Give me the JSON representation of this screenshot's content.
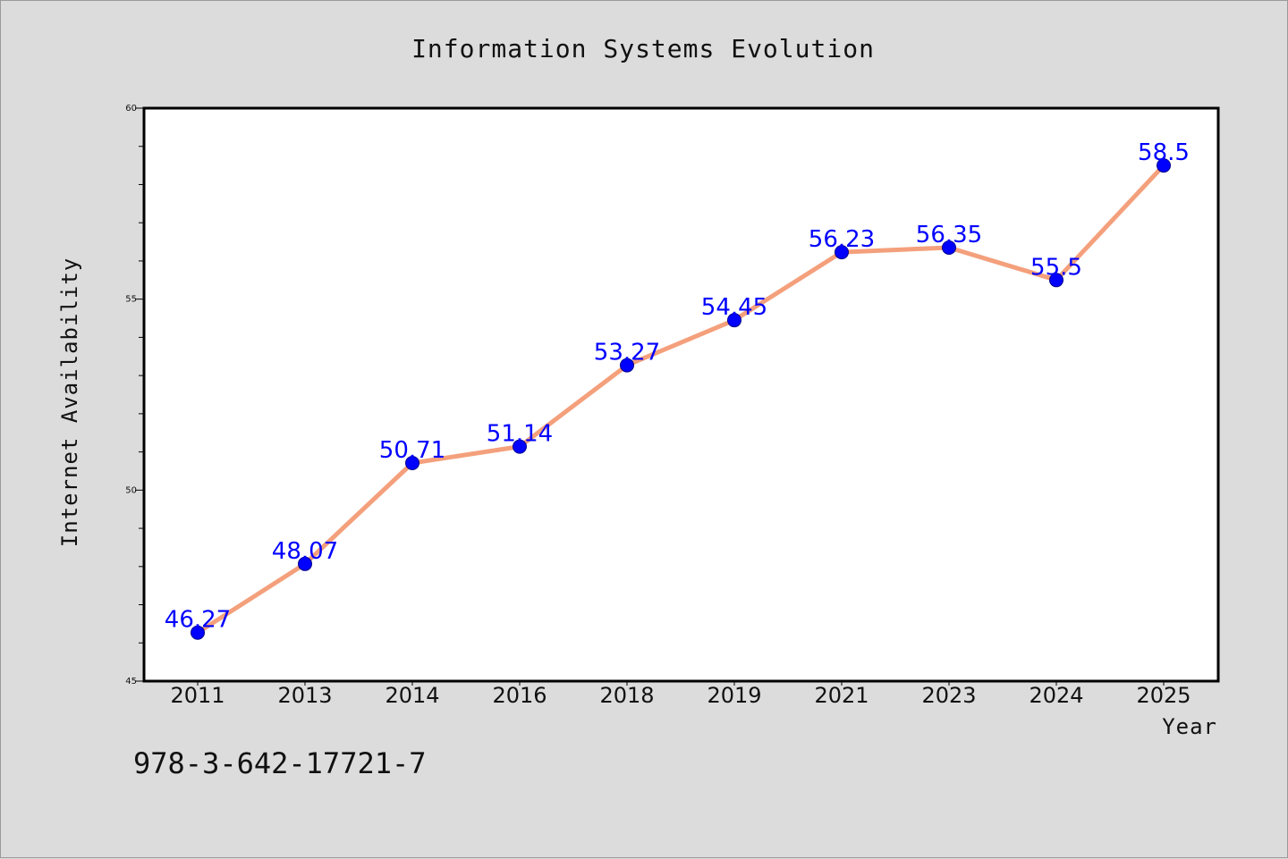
{
  "chart_data": {
    "type": "line",
    "title": "Information Systems Evolution",
    "xlabel": "Year",
    "ylabel": "Internet Availability",
    "categories": [
      "2011",
      "2013",
      "2014",
      "2016",
      "2018",
      "2019",
      "2021",
      "2023",
      "2024",
      "2025"
    ],
    "series": [
      {
        "values": [
          46.27,
          48.07,
          50.71,
          51.14,
          53.27,
          54.45,
          56.23,
          56.35,
          55.5,
          58.5
        ],
        "data_labels": [
          "46.27",
          "48.07",
          "50.71",
          "51.14",
          "53.27",
          "54.45",
          "56.23",
          "56.35",
          "55.5",
          "58.5"
        ],
        "line_color": "#f4a07c",
        "marker_color": "#0000ff"
      }
    ],
    "yticks": [
      "45",
      "50",
      "55",
      "60"
    ],
    "ylim": [
      45,
      60
    ],
    "grid": false,
    "legend": "none"
  },
  "footer": {
    "isbn": "978-3-642-17721-7"
  },
  "colors": {
    "background": "#dcdcdc",
    "plot_background": "#ffffff",
    "line": "#f4a07c",
    "marker": "#0000ff",
    "data_label": "#0000ff"
  }
}
